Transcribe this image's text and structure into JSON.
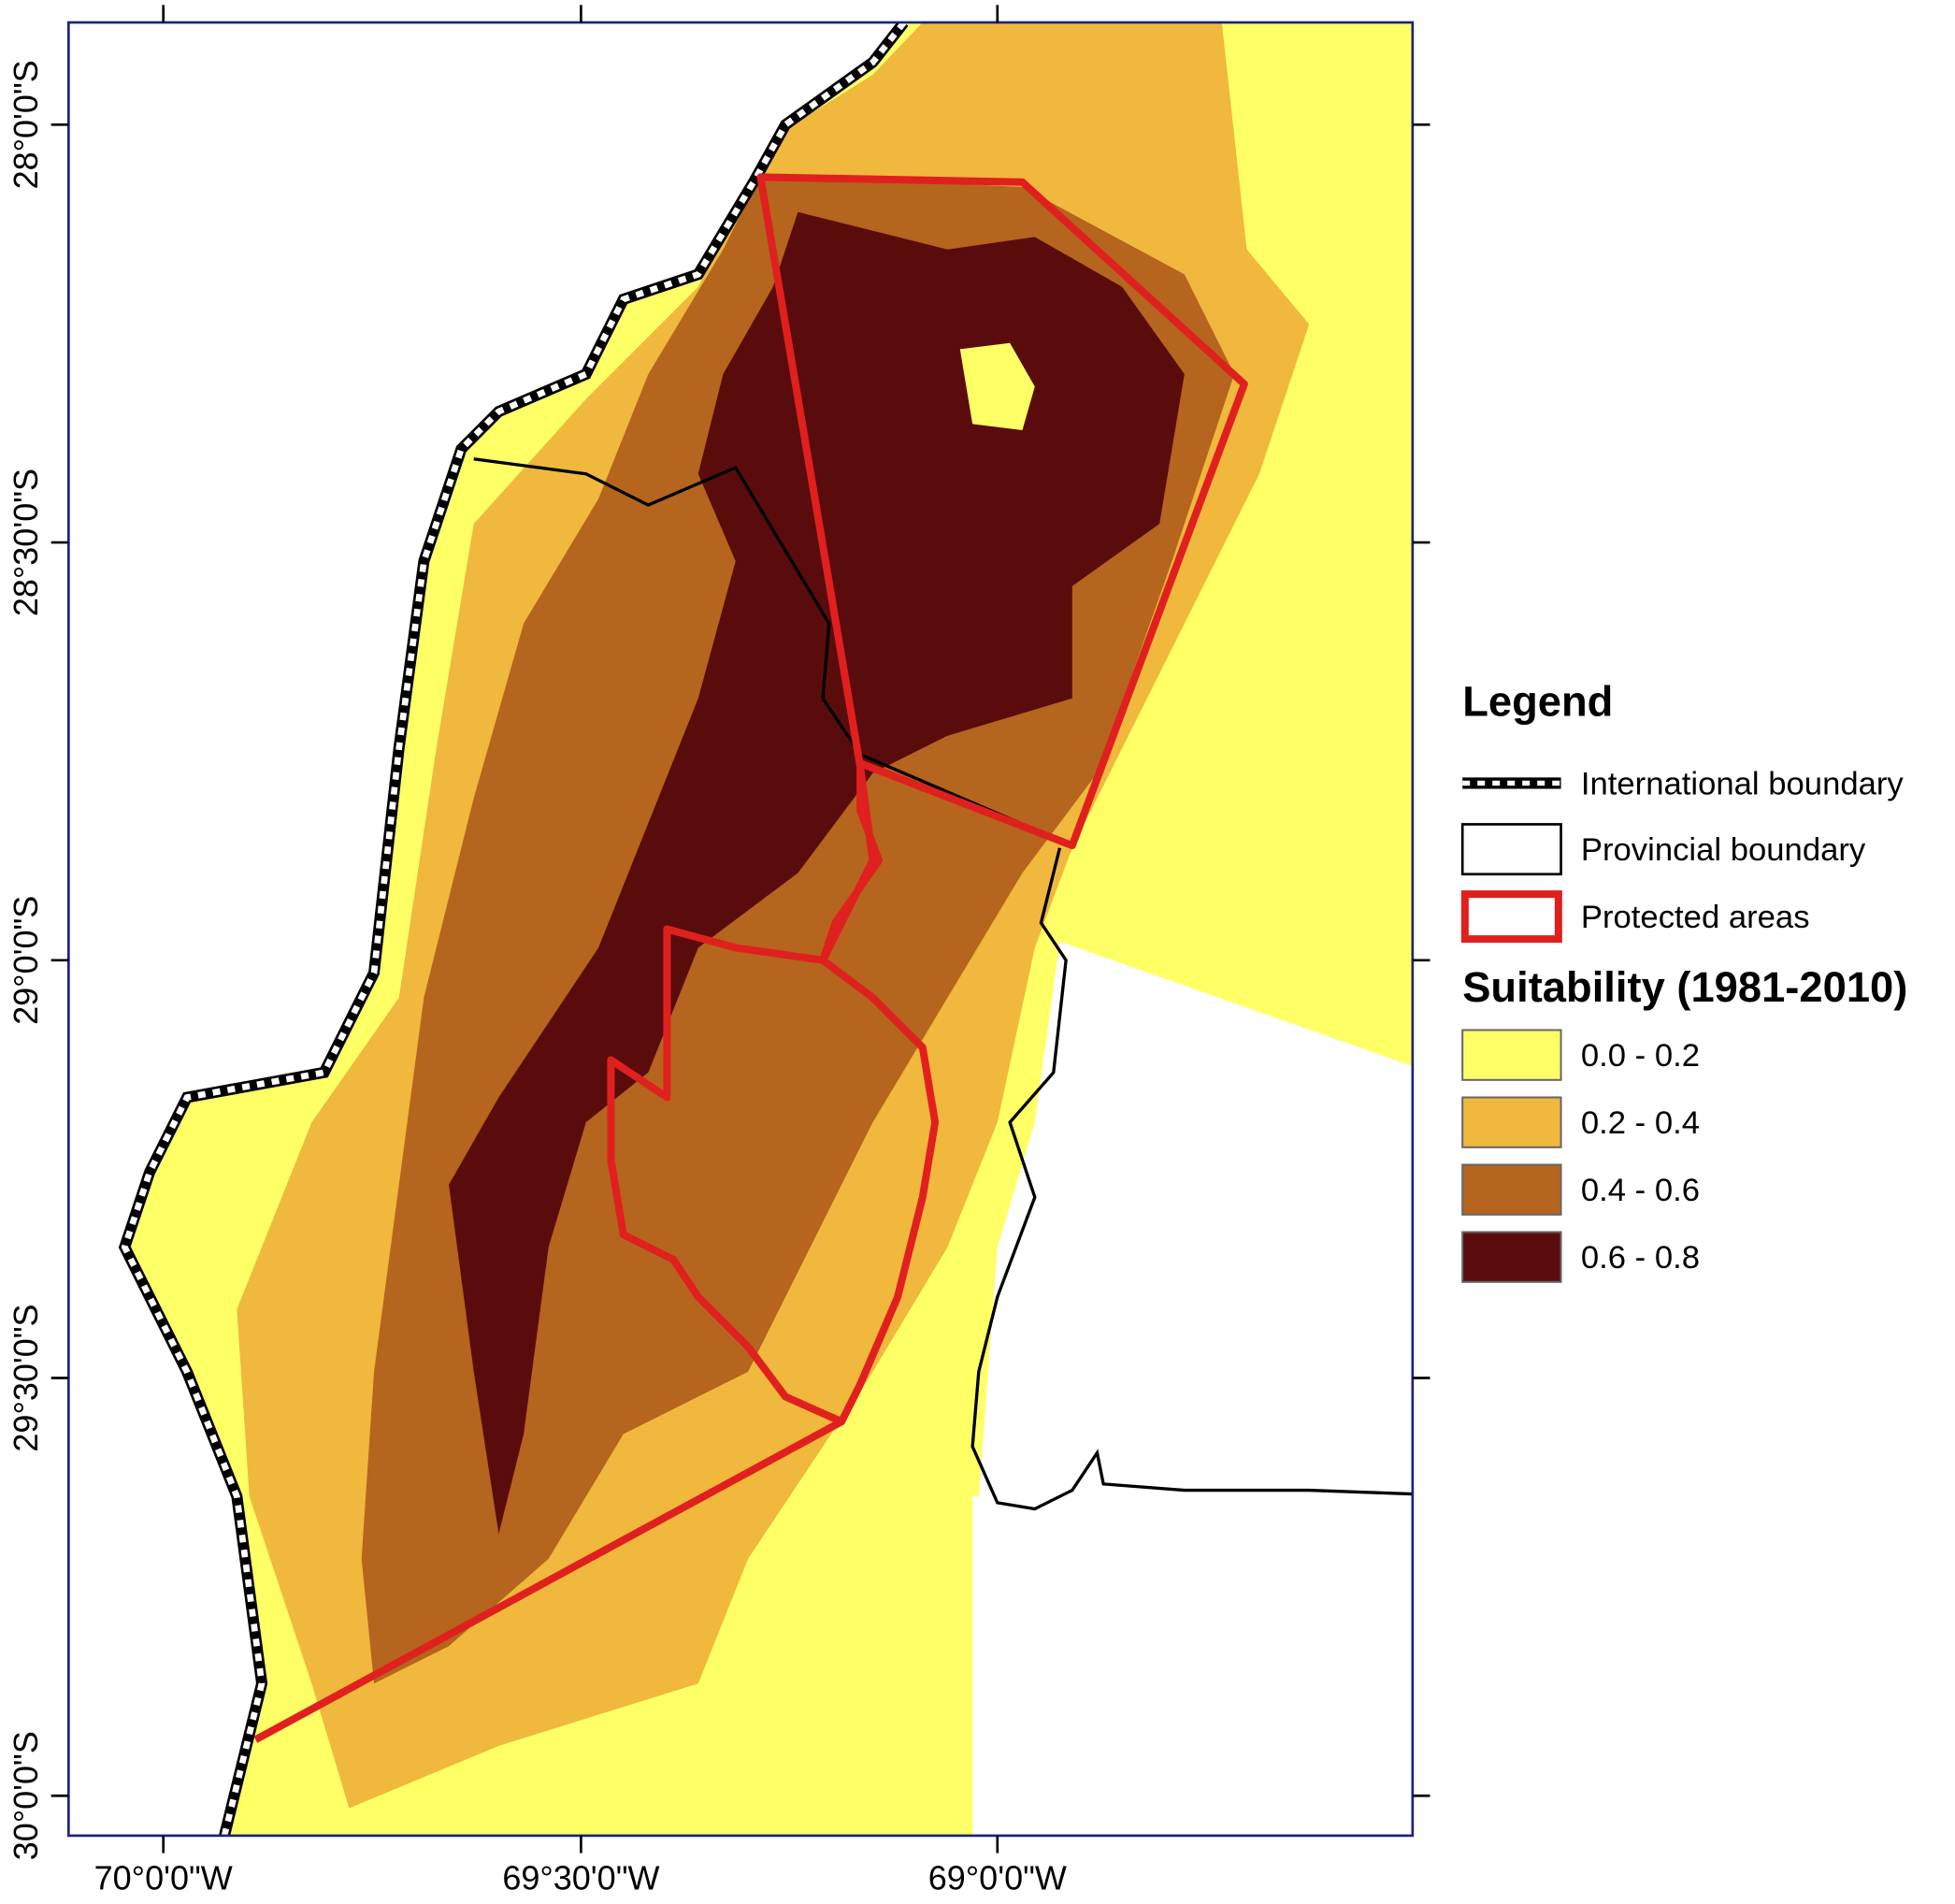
{
  "axes": {
    "x_ticks": [
      "70°0'0\"W",
      "69°30'0\"W",
      "69°0'0\"W"
    ],
    "y_ticks": [
      "28°0'0\"S",
      "28°30'0\"S",
      "29°0'0\"S",
      "29°30'0\"S",
      "30°0'0\"S"
    ]
  },
  "legend": {
    "title": "Legend",
    "items": [
      "International boundary",
      "Provincial boundary",
      "Protected areas"
    ],
    "suitability_title": "Suitability (1981-2010)",
    "classes": [
      {
        "label": "0.0 - 0.2",
        "color": "#ffff66"
      },
      {
        "label": "0.2 - 0.4",
        "color": "#f0b83c"
      },
      {
        "label": "0.4 - 0.6",
        "color": "#b5651d"
      },
      {
        "label": "0.6 - 0.8",
        "color": "#5a0c0c"
      }
    ]
  }
}
